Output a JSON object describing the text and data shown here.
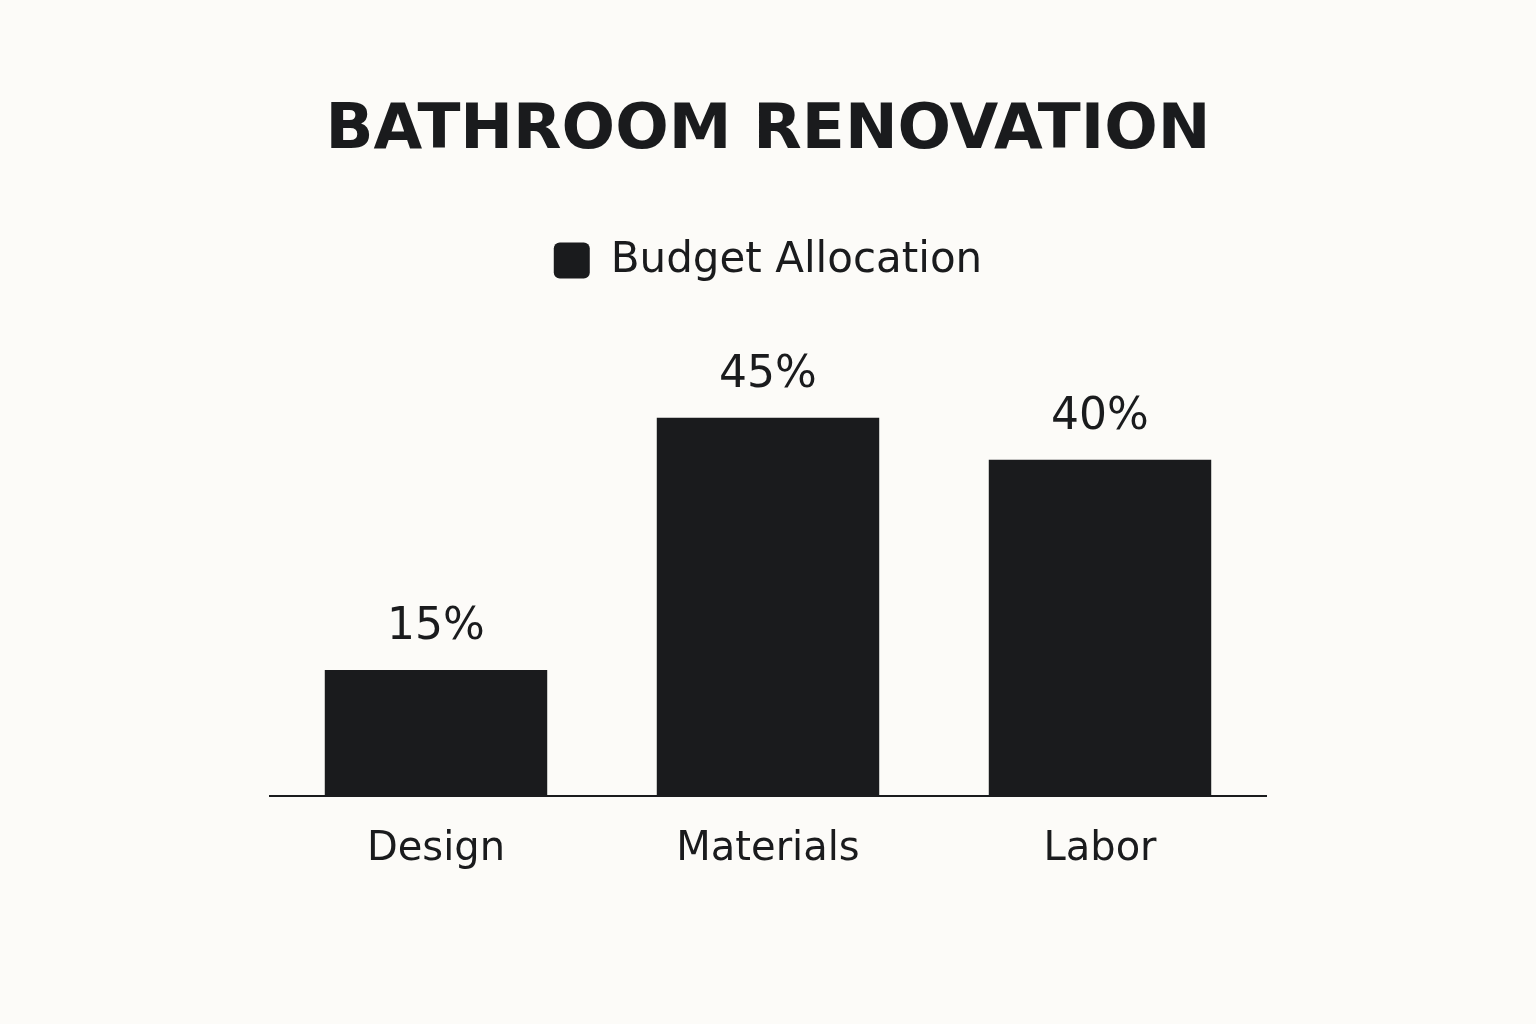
{
  "chart_data": {
    "type": "bar",
    "title": "BATHROOM RENOVATION",
    "categories": [
      "Design",
      "Materials",
      "Labor"
    ],
    "series": [
      {
        "name": "Budget Allocation",
        "color": "#1a1b1d",
        "values": [
          15,
          45,
          40
        ],
        "value_labels": [
          "15%",
          "45%",
          "40%"
        ]
      }
    ],
    "legend": "top",
    "grid": false,
    "tick_labels": "x"
  }
}
